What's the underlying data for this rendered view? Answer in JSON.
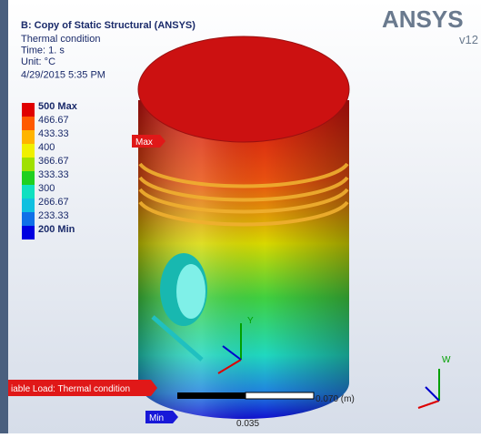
{
  "header": {
    "title": "B: Copy of Static Structural (ANSYS)",
    "lines": [
      "Thermal condition",
      "Time: 1. s",
      "Unit: °C",
      "4/29/2015 5:35 PM"
    ]
  },
  "legend": [
    "500 Max",
    "466.67",
    "433.33",
    "400",
    "366.67",
    "333.33",
    "300",
    "266.67",
    "233.33",
    "200 Min"
  ],
  "logo": {
    "name": "ANSYS",
    "version": "v12"
  },
  "probes": {
    "max": "Max",
    "min": "Min"
  },
  "banner": "iable Load: Thermal condition",
  "scale": {
    "end": "0.070 (m)",
    "mid": "0.035"
  },
  "axes": {
    "model": "Y",
    "corner": "W"
  }
}
